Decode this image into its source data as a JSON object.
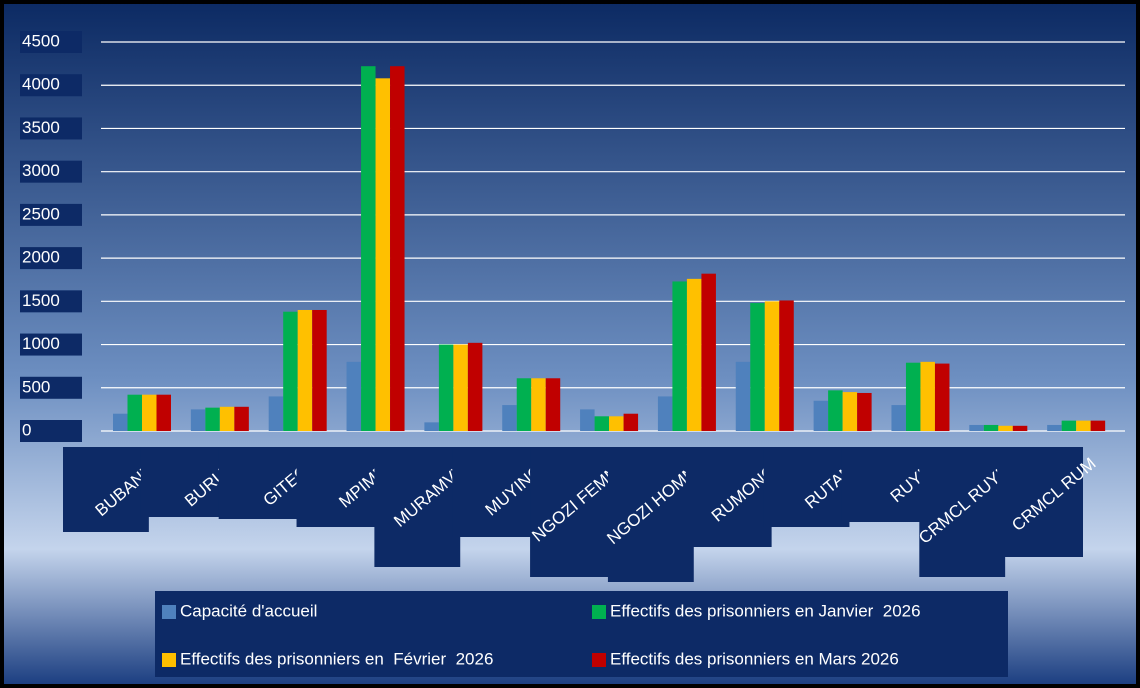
{
  "chart_data": {
    "type": "bar",
    "categories": [
      "BUBANZA",
      "BURURI",
      "GITEGA",
      "MPIMBA",
      "MURAMVYA",
      "MUYINGA",
      "NGOZI FEMME",
      "NGOZI HOMME",
      "RUMONGE",
      "RUTANA",
      "RUYIGI",
      "CRMCL RUYIGI",
      "CRMCL RUM"
    ],
    "series": [
      {
        "name": "Capacité d'accueil",
        "color": "#4f81bd",
        "values": [
          200,
          250,
          400,
          800,
          100,
          300,
          250,
          400,
          800,
          350,
          300,
          70,
          70
        ]
      },
      {
        "name": "Effectifs des prisonniers en Janvier  2026",
        "color": "#00b050",
        "values": [
          420,
          270,
          1380,
          4220,
          1000,
          610,
          170,
          1730,
          1480,
          470,
          790,
          70,
          120
        ]
      },
      {
        "name": "Effectifs des prisonniers en  Février  2026",
        "color": "#ffc000",
        "values": [
          420,
          280,
          1400,
          4080,
          1000,
          610,
          170,
          1760,
          1500,
          450,
          800,
          60,
          120
        ]
      },
      {
        "name": "Effectifs des prisonniers en Mars 2026",
        "color": "#c00000",
        "values": [
          420,
          280,
          1400,
          4220,
          1020,
          610,
          200,
          1820,
          1510,
          440,
          780,
          60,
          120
        ]
      }
    ],
    "ylim": [
      0,
      4500
    ],
    "yticks": [
      0,
      500,
      1000,
      1500,
      2000,
      2500,
      3000,
      3500,
      4000,
      4500
    ],
    "grid": true,
    "legend": "bottom"
  }
}
